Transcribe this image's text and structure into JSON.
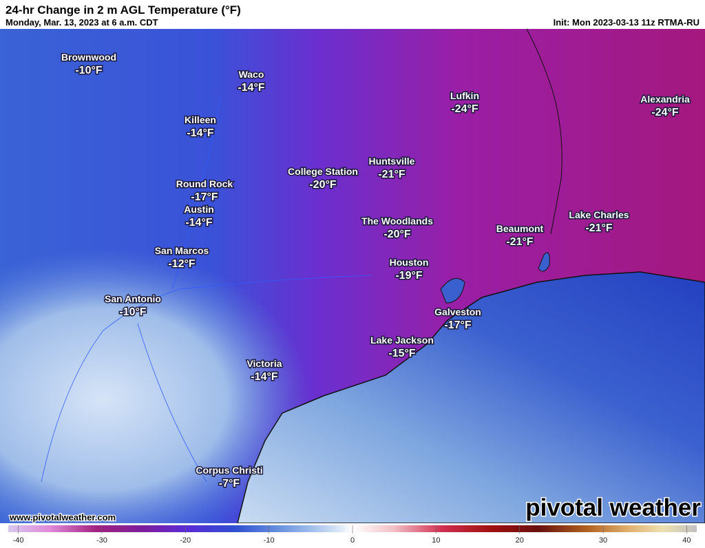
{
  "header": {
    "title": "24-hr Change in 2 m AGL Temperature (°F)",
    "subtitle": "Monday, Mar. 13, 2023 at 6 a.m. CDT",
    "init": "Init: Mon 2023-03-13 11z RTMA-RU"
  },
  "cities": [
    {
      "name": "Brownwood",
      "label": "-10°F"
    },
    {
      "name": "Waco",
      "label": "-14°F"
    },
    {
      "name": "Killeen",
      "label": "-14°F"
    },
    {
      "name": "Round Rock",
      "label": "-17°F"
    },
    {
      "name": "Austin",
      "label": "-14°F"
    },
    {
      "name": "San Marcos",
      "label": "-12°F"
    },
    {
      "name": "San Antonio",
      "label": "-10°F"
    },
    {
      "name": "Victoria",
      "label": "-14°F"
    },
    {
      "name": "Corpus Christi",
      "label": "-7°F"
    },
    {
      "name": "College Station",
      "label": "-20°F"
    },
    {
      "name": "Huntsville",
      "label": "-21°F"
    },
    {
      "name": "The Woodlands",
      "label": "-20°F"
    },
    {
      "name": "Houston",
      "label": "-19°F"
    },
    {
      "name": "Galveston",
      "label": "-17°F"
    },
    {
      "name": "Lake Jackson",
      "label": "-15°F"
    },
    {
      "name": "Lufkin",
      "label": "-24°F"
    },
    {
      "name": "Alexandria",
      "label": "-24°F"
    },
    {
      "name": "Beaumont",
      "label": "-21°F"
    },
    {
      "name": "Lake Charles",
      "label": "-21°F"
    }
  ],
  "website": "www.pivotalweather.com",
  "logo": "pivotal weather",
  "colorbar": {
    "range": [
      -41.2,
      41.2
    ],
    "ticks": [
      -40,
      -30,
      -20,
      -10,
      0,
      10,
      20,
      30,
      40
    ]
  }
}
